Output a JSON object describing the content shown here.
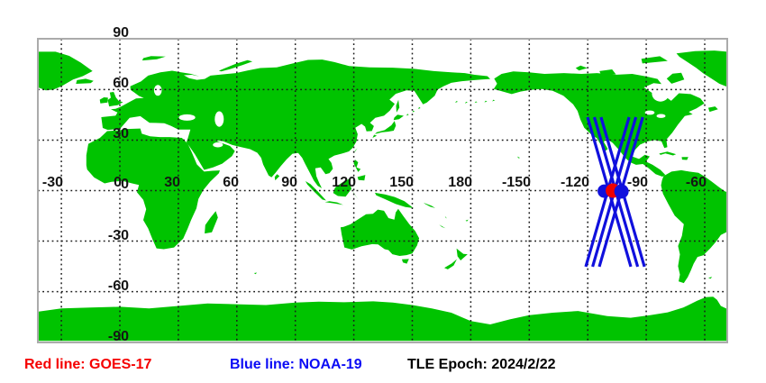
{
  "legend": {
    "red_label": "Red line: GOES-17",
    "blue_label": "Blue line: NOAA-19",
    "epoch_label": "TLE Epoch: 2024/2/22",
    "red_color": "#f50000",
    "blue_color": "#0b0bf5",
    "epoch_color": "#000000"
  },
  "map": {
    "projection": "equirectangular",
    "lon_ticks": [
      {
        "label": "-30",
        "lon": -30
      },
      {
        "label": "0",
        "lon": 0
      },
      {
        "label": "30",
        "lon": 30
      },
      {
        "label": "60",
        "lon": 60
      },
      {
        "label": "90",
        "lon": 90
      },
      {
        "label": "120",
        "lon": 120
      },
      {
        "label": "150",
        "lon": 150
      },
      {
        "label": "180",
        "lon": 180
      },
      {
        "label": "-150",
        "lon": -150
      },
      {
        "label": "-120",
        "lon": -120
      },
      {
        "label": "-90",
        "lon": -90
      },
      {
        "label": "-60",
        "lon": -60
      }
    ],
    "lat_ticks": [
      {
        "label": "90",
        "lat": 90
      },
      {
        "label": "60",
        "lat": 60
      },
      {
        "label": "30",
        "lat": 30
      },
      {
        "label": "0",
        "lat": 0
      },
      {
        "label": "-30",
        "lat": -30
      },
      {
        "label": "-60",
        "lat": -60
      },
      {
        "label": "-90",
        "lat": -90
      }
    ],
    "colors": {
      "land": "#00c300",
      "water": "#ffffff",
      "grid": "#1a1a1a",
      "frame": "#ababab",
      "track": "#1010dd"
    },
    "satellites": {
      "red": {
        "name": "GOES-17"
      },
      "blue": {
        "name": "NOAA-19"
      }
    },
    "tracks": [
      {
        "sat": "NOAA-19",
        "from": [
          -120.1,
          43.6
        ],
        "to": [
          -97.9,
          -45.2
        ]
      },
      {
        "sat": "NOAA-19",
        "from": [
          -116.6,
          43.6
        ],
        "to": [
          -94.4,
          -45.2
        ]
      },
      {
        "sat": "NOAA-19",
        "from": [
          -113.2,
          43.6
        ],
        "to": [
          -90.9,
          -45.2
        ]
      },
      {
        "sat": "NOAA-19",
        "from": [
          -98.8,
          43.6
        ],
        "to": [
          -121.0,
          -45.2
        ]
      },
      {
        "sat": "NOAA-19",
        "from": [
          -95.3,
          43.6
        ],
        "to": [
          -117.5,
          -45.2
        ]
      },
      {
        "sat": "NOAA-19",
        "from": [
          -91.8,
          43.6
        ],
        "to": [
          -114.1,
          -45.2
        ]
      }
    ],
    "markers": [
      {
        "sat": "NOAA-19",
        "color": "#1010dd",
        "lon": -111.5,
        "lat": -0.3,
        "r": 7.5
      },
      {
        "sat": "GOES-17",
        "color": "#ee0000",
        "lon": -107.1,
        "lat": 0,
        "r": 8
      },
      {
        "sat": "NOAA-19",
        "color": "#1010dd",
        "lon": -102.7,
        "lat": -0.5,
        "r": 8
      }
    ]
  }
}
